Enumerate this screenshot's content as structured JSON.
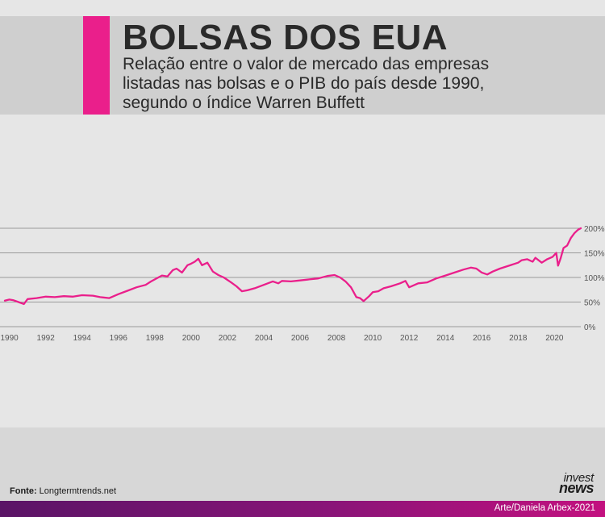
{
  "header": {
    "title": "BOLSAS DOS EUA",
    "subtitle_lines": [
      "Relação entre o valor de mercado das empresas",
      "listadas nas bolsas e o PIB do país desde 1990,",
      "segundo o índice Warren Buffett"
    ]
  },
  "footer": {
    "source_label": "Fonte:",
    "source_value": "Longtermtrends.net",
    "logo_line1": "invest",
    "logo_line2": "news",
    "credit": "Arte/Daniela Arbex-2021"
  },
  "colors": {
    "accent": "#ea1f8b",
    "header_band": "#cfcfcf",
    "background": "#e6e6e6",
    "grid": "#9a9a9a",
    "footer_gradient_start": "#5a1466",
    "footer_gradient_end": "#c3117f"
  },
  "chart_data": {
    "type": "line",
    "title": "",
    "xlabel": "",
    "ylabel": "",
    "xlim": [
      1989.75,
      2021.45
    ],
    "ylim": [
      0,
      200
    ],
    "grid": true,
    "y_ticks": [
      0,
      50,
      100,
      150,
      200
    ],
    "y_tick_labels": [
      "0%",
      "50%",
      "100%",
      "150%",
      "200%"
    ],
    "x_ticks": [
      1990,
      1992,
      1994,
      1996,
      1998,
      2000,
      2002,
      2004,
      2006,
      2008,
      2010,
      2012,
      2014,
      2016,
      2018,
      2020
    ],
    "x_tick_labels": [
      "1990",
      "1992",
      "1994",
      "1996",
      "1998",
      "2000",
      "2002",
      "2004",
      "2006",
      "2008",
      "2010",
      "2012",
      "2014",
      "2016",
      "2018",
      "2020"
    ],
    "series": [
      {
        "color": "#ea1f8b",
        "x": [
          1989.75,
          1990.0,
          1990.2,
          1990.5,
          1990.8,
          1991.0,
          1991.5,
          1992.0,
          1992.5,
          1993.0,
          1993.5,
          1994.0,
          1994.6,
          1995.0,
          1995.5,
          1996.0,
          1996.5,
          1997.0,
          1997.5,
          1997.8,
          1998.2,
          1998.4,
          1998.7,
          1999.0,
          1999.2,
          1999.5,
          1999.8,
          2000.0,
          2000.2,
          2000.4,
          2000.6,
          2000.9,
          2001.2,
          2001.5,
          2001.8,
          2002.2,
          2002.5,
          2002.8,
          2003.1,
          2003.5,
          2004.0,
          2004.5,
          2004.8,
          2005.0,
          2005.5,
          2006.0,
          2006.5,
          2007.0,
          2007.5,
          2007.9,
          2008.2,
          2008.5,
          2008.8,
          2009.1,
          2009.3,
          2009.5,
          2009.8,
          2010.0,
          2010.3,
          2010.6,
          2011.0,
          2011.5,
          2011.8,
          2012.0,
          2012.5,
          2013.0,
          2013.5,
          2014.0,
          2014.5,
          2015.0,
          2015.4,
          2015.7,
          2016.0,
          2016.3,
          2016.6,
          2017.0,
          2017.5,
          2018.0,
          2018.2,
          2018.5,
          2018.8,
          2018.95,
          2019.3,
          2019.6,
          2019.9,
          2020.1,
          2020.2,
          2020.35,
          2020.5,
          2020.7,
          2020.9,
          2021.1,
          2021.3,
          2021.45
        ],
        "y": [
          53,
          55,
          54,
          50,
          46,
          56,
          58,
          61,
          60,
          62,
          61,
          64,
          63,
          60,
          58,
          66,
          73,
          80,
          85,
          92,
          100,
          104,
          102,
          115,
          118,
          110,
          125,
          128,
          132,
          138,
          125,
          130,
          112,
          105,
          100,
          90,
          82,
          72,
          74,
          78,
          85,
          92,
          88,
          93,
          92,
          94,
          96,
          98,
          103,
          105,
          100,
          92,
          80,
          60,
          58,
          52,
          62,
          70,
          72,
          78,
          82,
          88,
          93,
          80,
          88,
          90,
          98,
          104,
          110,
          116,
          120,
          118,
          110,
          106,
          112,
          118,
          124,
          130,
          135,
          137,
          132,
          140,
          130,
          137,
          142,
          150,
          124,
          140,
          160,
          165,
          180,
          190,
          197,
          200
        ]
      }
    ]
  }
}
